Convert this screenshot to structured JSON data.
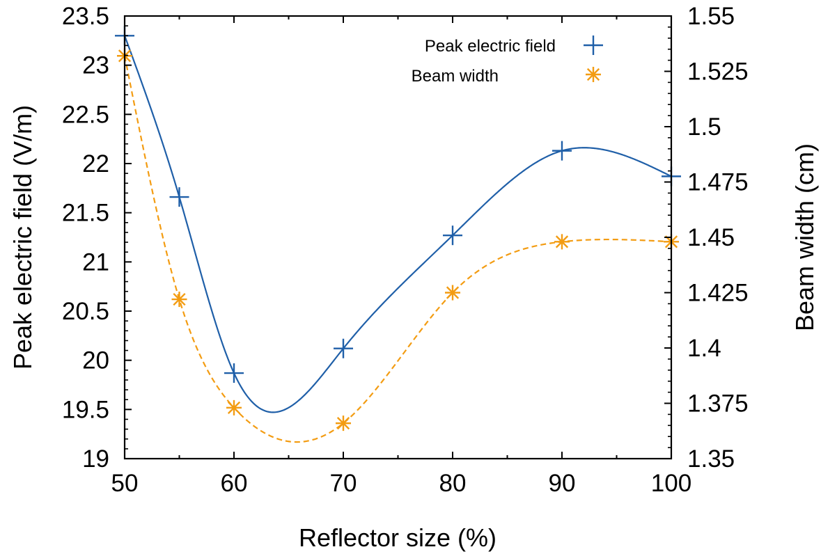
{
  "chart_data": {
    "type": "line",
    "xlabel": "Reflector size (%)",
    "ylabel": "Peak electric field (V/m)",
    "y2label": "Beam width (cm)",
    "xlim": [
      50,
      100
    ],
    "ylim": [
      19,
      23.5
    ],
    "y2lim": [
      1.35,
      1.55
    ],
    "xticks": [
      "50",
      "60",
      "70",
      "80",
      "90",
      "100"
    ],
    "yticks": [
      "19",
      "19.5",
      "20",
      "20.5",
      "21",
      "21.5",
      "22",
      "22.5",
      "23",
      "23.5"
    ],
    "y2ticks": [
      "1.35",
      "1.375",
      "1.4",
      "1.425",
      "1.45",
      "1.475",
      "1.5",
      "1.525",
      "1.55"
    ],
    "grid": false,
    "legend_position": "top-right",
    "x": [
      50,
      55,
      60,
      70,
      80,
      90,
      100
    ],
    "series": [
      {
        "name": "Peak electric field",
        "axis": "left",
        "marker": "plus",
        "line": "solid",
        "color": "#1f5fa8",
        "values": [
          23.3,
          21.66,
          19.87,
          20.12,
          21.27,
          22.13,
          21.87
        ]
      },
      {
        "name": "Beam width",
        "axis": "right",
        "marker": "asterisk",
        "line": "dashed",
        "color": "#f39c12",
        "values": [
          1.532,
          1.422,
          1.373,
          1.366,
          1.425,
          1.448,
          1.448
        ]
      }
    ]
  }
}
